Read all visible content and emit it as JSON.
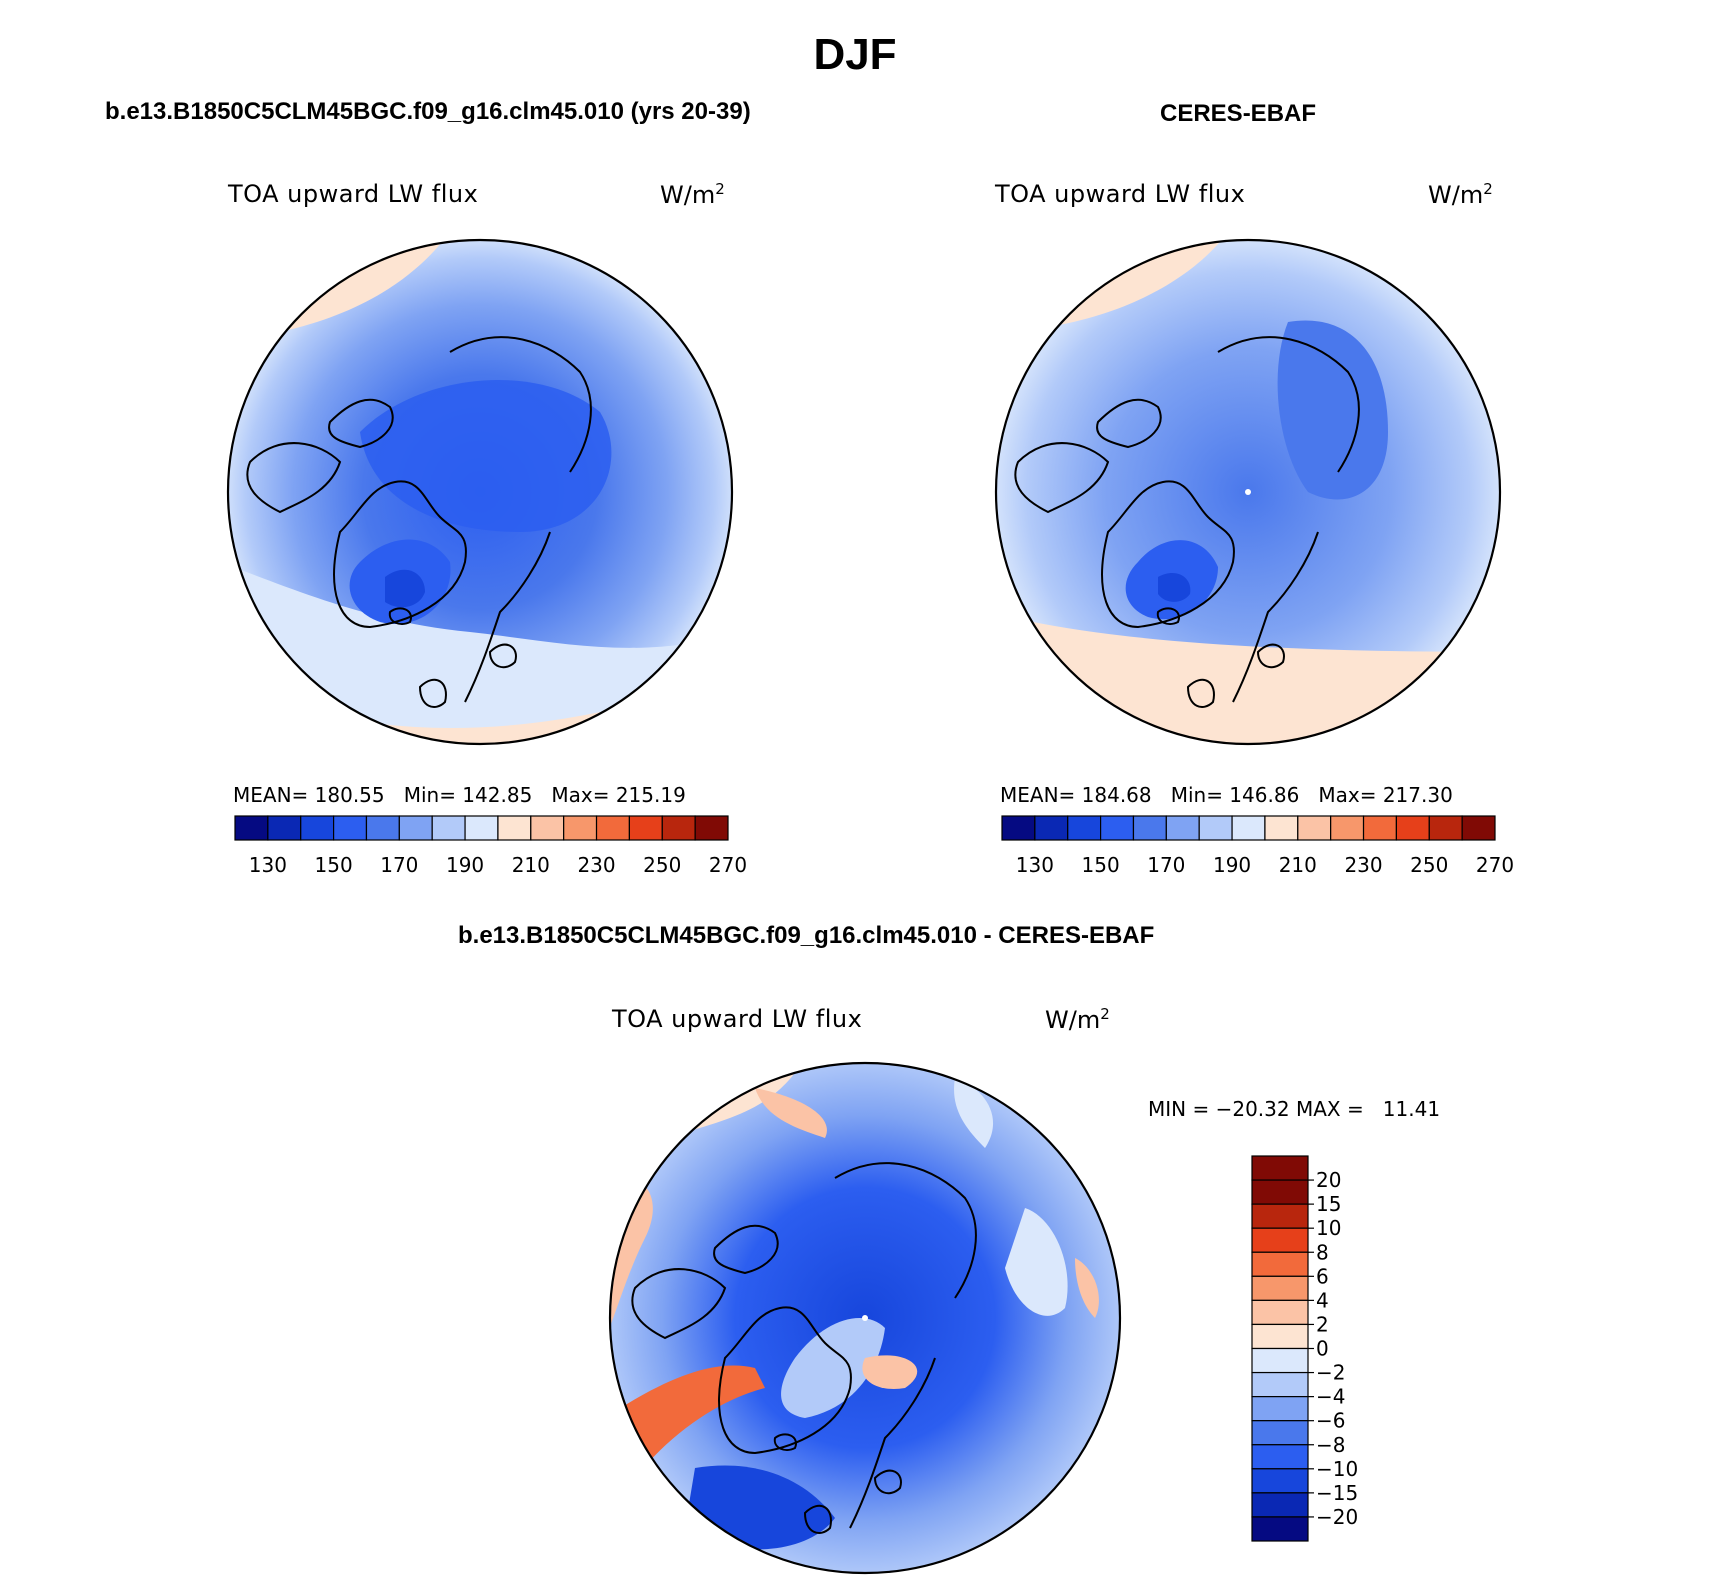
{
  "title": "DJF",
  "colors": {
    "abs_scale": [
      "#050a82",
      "#0a28b4",
      "#1746dc",
      "#2c5ef0",
      "#4a78ec",
      "#7fa3f3",
      "#b2caf9",
      "#dbe8fc",
      "#fde4d2",
      "#fbc3a6",
      "#f7976b",
      "#f26a3b",
      "#e6401a",
      "#b8260d",
      "#800a05"
    ],
    "diff_scale": [
      "#800a05",
      "#b8260d",
      "#e6401a",
      "#f26a3b",
      "#f7976b",
      "#fbc3a6",
      "#fde4d2",
      "#dbe8fc",
      "#b2caf9",
      "#7fa3f3",
      "#4a78ec",
      "#2c5ef0",
      "#1746dc",
      "#0a28b4",
      "#050a82"
    ]
  },
  "panels": [
    {
      "title": "b.e13.B1850C5CLM45BGC.f09_g16.clm45.010 (yrs 20-39)",
      "variable": "TOA upward LW flux",
      "units": "W/m",
      "units_exp": "2",
      "stats": "MEAN= 180.55   Min= 142.85   Max= 215.19",
      "colorbar_ticks": [
        "130",
        "150",
        "170",
        "190",
        "210",
        "230",
        "250",
        "270"
      ]
    },
    {
      "title": "CERES-EBAF",
      "variable": "TOA upward LW flux",
      "units": "W/m",
      "units_exp": "2",
      "stats": "MEAN= 184.68   Min= 146.86   Max= 217.30",
      "colorbar_ticks": [
        "130",
        "150",
        "170",
        "190",
        "210",
        "230",
        "250",
        "270"
      ]
    },
    {
      "title": "b.e13.B1850C5CLM45BGC.f09_g16.clm45.010 - CERES-EBAF",
      "variable": "TOA upward LW flux",
      "units": "W/m",
      "units_exp": "2",
      "stats": "MIN = −20.32 MAX =   11.41",
      "colorbar_ticks": [
        "20",
        "15",
        "10",
        "8",
        "6",
        "4",
        "2",
        "0",
        "−2",
        "−4",
        "−6",
        "−8",
        "−10",
        "−15",
        "−20"
      ]
    }
  ]
}
